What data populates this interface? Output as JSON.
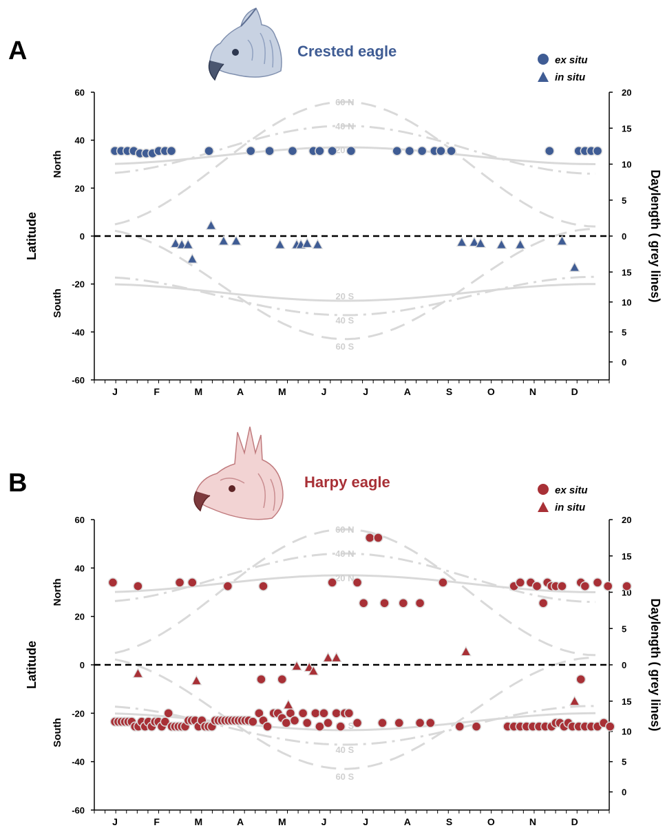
{
  "colors": {
    "crested": "#3f5c94",
    "harpy": "#a83036",
    "grey": "#d9d9d9",
    "daylabel": "#d0d0d0"
  },
  "chart_data": [
    {
      "panel_letter": "A",
      "title": "Crested eagle",
      "type": "scatter",
      "color": "#3f5c94",
      "legend": [
        "ex situ",
        "in situ"
      ],
      "legend_position": "top-right",
      "months": [
        "J",
        "F",
        "M",
        "A",
        "M",
        "J",
        "J",
        "A",
        "S",
        "O",
        "N",
        "D"
      ],
      "ylabel": "Latitude",
      "y_north": "North",
      "y_south": "South",
      "ylim": [
        -60,
        60
      ],
      "yticks": [
        60,
        40,
        20,
        0,
        -20,
        -40,
        -60
      ],
      "y2label_main": "Daylength",
      "y2label_paren": "( grey lines)",
      "y2ticks_top": [
        20,
        15,
        10,
        5,
        0
      ],
      "y2ticks_bottom": [
        15,
        10,
        5,
        0
      ],
      "daylength_labels": [
        "60 N",
        "40 N",
        "20 N",
        "20 S",
        "40 S",
        "60 S"
      ],
      "ex_situ": [
        [
          0.0,
          35.5
        ],
        [
          0.15,
          35.5
        ],
        [
          0.3,
          35.5
        ],
        [
          0.45,
          35.5
        ],
        [
          0.6,
          34.5
        ],
        [
          0.75,
          34.5
        ],
        [
          0.9,
          34.5
        ],
        [
          1.05,
          35.5
        ],
        [
          1.2,
          35.5
        ],
        [
          1.35,
          35.5
        ],
        [
          2.25,
          35.5
        ],
        [
          3.25,
          35.5
        ],
        [
          3.7,
          35.5
        ],
        [
          4.25,
          35.5
        ],
        [
          4.75,
          35.5
        ],
        [
          4.9,
          35.5
        ],
        [
          5.2,
          35.5
        ],
        [
          5.65,
          35.5
        ],
        [
          6.75,
          35.5
        ],
        [
          7.05,
          35.5
        ],
        [
          7.35,
          35.5
        ],
        [
          7.65,
          35.5
        ],
        [
          7.8,
          35.5
        ],
        [
          8.05,
          35.5
        ],
        [
          10.4,
          35.5
        ],
        [
          11.1,
          35.5
        ],
        [
          11.25,
          35.5
        ],
        [
          11.4,
          35.5
        ],
        [
          11.55,
          35.5
        ]
      ],
      "in_situ": [
        [
          1.45,
          -3
        ],
        [
          1.6,
          -3.5
        ],
        [
          1.75,
          -3.5
        ],
        [
          1.85,
          -9.5
        ],
        [
          2.3,
          4.5
        ],
        [
          2.6,
          -2
        ],
        [
          2.9,
          -2
        ],
        [
          3.95,
          -3.5
        ],
        [
          4.35,
          -3.5
        ],
        [
          4.45,
          -3.5
        ],
        [
          4.6,
          -3
        ],
        [
          4.85,
          -3.5
        ],
        [
          8.3,
          -2.5
        ],
        [
          8.6,
          -2.5
        ],
        [
          8.75,
          -3
        ],
        [
          9.25,
          -3.5
        ],
        [
          9.7,
          -3.5
        ],
        [
          10.7,
          -2
        ],
        [
          11.0,
          -13
        ]
      ]
    },
    {
      "panel_letter": "B",
      "title": "Harpy eagle",
      "type": "scatter",
      "color": "#a83036",
      "legend": [
        "ex situ",
        "in situ"
      ],
      "legend_position": "top-right",
      "months": [
        "J",
        "F",
        "M",
        "A",
        "M",
        "J",
        "J",
        "A",
        "S",
        "O",
        "N",
        "D"
      ],
      "ylabel": "Latitude",
      "y_north": "North",
      "y_south": "South",
      "ylim": [
        -60,
        60
      ],
      "yticks": [
        60,
        40,
        20,
        0,
        -20,
        -40,
        -60
      ],
      "y2label_main": "Daylength",
      "y2label_paren": "( grey lines)",
      "y2ticks_top": [
        20,
        15,
        10,
        5,
        0
      ],
      "y2ticks_bottom": [
        15,
        10,
        5,
        0
      ],
      "daylength_labels": [
        "60 N",
        "40 N",
        "20 N",
        "20 S",
        "40 S",
        "60 S"
      ],
      "ex_situ": [
        [
          -0.05,
          34
        ],
        [
          0.55,
          32.5
        ],
        [
          1.55,
          34
        ],
        [
          1.85,
          34
        ],
        [
          2.7,
          32.5
        ],
        [
          3.55,
          32.5
        ],
        [
          5.2,
          34
        ],
        [
          5.8,
          34
        ],
        [
          5.95,
          25.5
        ],
        [
          6.1,
          52.5
        ],
        [
          6.3,
          52.5
        ],
        [
          6.45,
          25.5
        ],
        [
          6.9,
          25.5
        ],
        [
          7.3,
          25.5
        ],
        [
          7.85,
          34
        ],
        [
          9.55,
          32.5
        ],
        [
          9.7,
          34
        ],
        [
          9.95,
          34
        ],
        [
          10.1,
          32.5
        ],
        [
          10.25,
          25.5
        ],
        [
          10.35,
          34
        ],
        [
          10.45,
          32.5
        ],
        [
          10.55,
          32.5
        ],
        [
          10.7,
          32.5
        ],
        [
          11.15,
          34
        ],
        [
          11.25,
          32.5
        ],
        [
          11.55,
          34
        ],
        [
          11.8,
          32.5
        ],
        [
          12.25,
          32.5
        ],
        [
          0.0,
          -23.5
        ],
        [
          0.08,
          -23.5
        ],
        [
          0.16,
          -23.5
        ],
        [
          0.24,
          -23.5
        ],
        [
          0.32,
          -23.5
        ],
        [
          0.4,
          -23.5
        ],
        [
          0.48,
          -25.5
        ],
        [
          0.56,
          -25.5
        ],
        [
          0.64,
          -23.5
        ],
        [
          0.72,
          -25.5
        ],
        [
          0.8,
          -23.5
        ],
        [
          0.88,
          -25.5
        ],
        [
          0.96,
          -23.5
        ],
        [
          1.04,
          -23.5
        ],
        [
          1.12,
          -25.5
        ],
        [
          1.2,
          -23.5
        ],
        [
          1.28,
          -20
        ],
        [
          1.36,
          -25.5
        ],
        [
          1.44,
          -25.5
        ],
        [
          1.52,
          -25.5
        ],
        [
          1.6,
          -25.5
        ],
        [
          1.68,
          -25.5
        ],
        [
          1.76,
          -23
        ],
        [
          1.84,
          -23
        ],
        [
          1.92,
          -23
        ],
        [
          2.0,
          -25.5
        ],
        [
          2.08,
          -23
        ],
        [
          2.16,
          -25.5
        ],
        [
          2.24,
          -25.5
        ],
        [
          2.32,
          -25.5
        ],
        [
          2.4,
          -23
        ],
        [
          2.48,
          -23
        ],
        [
          2.56,
          -23
        ],
        [
          2.64,
          -23
        ],
        [
          2.72,
          -23
        ],
        [
          2.8,
          -23
        ],
        [
          2.88,
          -23
        ],
        [
          2.96,
          -23
        ],
        [
          3.04,
          -23
        ],
        [
          3.12,
          -23
        ],
        [
          3.2,
          -23
        ],
        [
          3.3,
          -23.5
        ],
        [
          3.45,
          -20
        ],
        [
          3.55,
          -23
        ],
        [
          3.65,
          -25.5
        ],
        [
          3.8,
          -20
        ],
        [
          3.9,
          -20
        ],
        [
          4.0,
          -22
        ],
        [
          4.1,
          -24
        ],
        [
          4.2,
          -20
        ],
        [
          4.3,
          -23
        ],
        [
          4.5,
          -20
        ],
        [
          4.6,
          -24
        ],
        [
          4.8,
          -20
        ],
        [
          4.9,
          -25.5
        ],
        [
          5.0,
          -20
        ],
        [
          5.1,
          -24
        ],
        [
          5.3,
          -20
        ],
        [
          5.4,
          -25.5
        ],
        [
          5.5,
          -20
        ],
        [
          5.6,
          -20
        ],
        [
          5.8,
          -24
        ],
        [
          6.4,
          -24
        ],
        [
          6.8,
          -24
        ],
        [
          7.3,
          -24
        ],
        [
          7.55,
          -24
        ],
        [
          8.25,
          -25.5
        ],
        [
          8.65,
          -25.5
        ],
        [
          9.4,
          -25.5
        ],
        [
          9.55,
          -25.5
        ],
        [
          9.7,
          -25.5
        ],
        [
          9.85,
          -25.5
        ],
        [
          10.0,
          -25.5
        ],
        [
          10.15,
          -25.5
        ],
        [
          10.3,
          -25.5
        ],
        [
          10.45,
          -25.5
        ],
        [
          10.55,
          -24
        ],
        [
          10.65,
          -24
        ],
        [
          10.75,
          -25.5
        ],
        [
          10.85,
          -24
        ],
        [
          10.95,
          -25.5
        ],
        [
          11.1,
          -25.5
        ],
        [
          11.25,
          -25.5
        ],
        [
          11.4,
          -25.5
        ],
        [
          11.55,
          -25.5
        ],
        [
          11.7,
          -24
        ],
        [
          11.85,
          -25.5
        ],
        [
          3.5,
          -6
        ],
        [
          4.0,
          -6
        ],
        [
          11.15,
          -6
        ]
      ],
      "in_situ": [
        [
          0.55,
          -3.5
        ],
        [
          1.95,
          -6.5
        ],
        [
          4.15,
          -16.5
        ],
        [
          4.35,
          -0.5
        ],
        [
          4.65,
          -1
        ],
        [
          4.75,
          -2.5
        ],
        [
          5.1,
          3
        ],
        [
          5.3,
          3
        ],
        [
          8.4,
          5.5
        ],
        [
          11.0,
          -15
        ]
      ]
    }
  ]
}
